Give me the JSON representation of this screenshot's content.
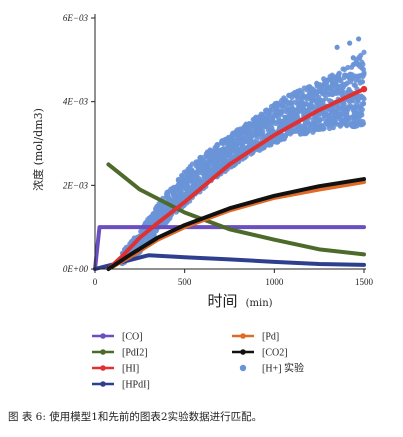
{
  "chart_data": {
    "type": "line",
    "ylabel": "浓度 (mol/dm3)",
    "xlabel": "时间",
    "xlabel_unit": "(min)",
    "x_ticks": [
      0,
      500,
      1000,
      1500
    ],
    "y_ticks": [
      "0E+00",
      "2E−03",
      "4E−03",
      "6E−03"
    ],
    "y_tick_values": [
      0,
      0.002,
      0.004,
      0.006
    ],
    "xlim": [
      0,
      1500
    ],
    "ylim": [
      0,
      0.006
    ],
    "grid": false,
    "legend_position": "bottom",
    "series": [
      {
        "name": "[CO]",
        "color": "#6a4fc0",
        "kind": "line",
        "x": [
          0,
          25,
          1500
        ],
        "y": [
          0,
          0.001,
          0.001
        ]
      },
      {
        "name": "[PdI2]",
        "color": "#4e6a2a",
        "kind": "line",
        "x": [
          75,
          250,
          500,
          750,
          1000,
          1250,
          1500
        ],
        "y": [
          0.0025,
          0.0019,
          0.00135,
          0.00095,
          0.0007,
          0.00047,
          0.00035
        ]
      },
      {
        "name": "[HI]",
        "color": "#e03030",
        "kind": "line",
        "x": [
          75,
          150,
          250,
          350,
          500,
          750,
          1000,
          1250,
          1500
        ],
        "y": [
          0,
          0.0003,
          0.00075,
          0.0011,
          0.0016,
          0.0025,
          0.0032,
          0.0038,
          0.0043
        ]
      },
      {
        "name": "[HPdI]",
        "color": "#2f3f90",
        "kind": "line",
        "x": [
          0,
          300,
          500,
          750,
          1000,
          1250,
          1500
        ],
        "y": [
          0,
          0.00033,
          0.00028,
          0.00023,
          0.00017,
          0.00012,
          0.0001
        ]
      },
      {
        "name": "[Pd]",
        "color": "#e06a28",
        "kind": "line",
        "x": [
          75,
          200,
          350,
          500,
          750,
          1000,
          1250,
          1500
        ],
        "y": [
          0,
          0.0003,
          0.0007,
          0.001,
          0.0014,
          0.0017,
          0.0019,
          0.00208
        ]
      },
      {
        "name": "[CO2]",
        "color": "#111111",
        "kind": "line",
        "x": [
          75,
          200,
          350,
          500,
          750,
          1000,
          1250,
          1500
        ],
        "y": [
          0,
          0.00035,
          0.00075,
          0.00105,
          0.00145,
          0.00175,
          0.00198,
          0.00215
        ]
      },
      {
        "name": "[H+] 实验",
        "color": "#6a94d8",
        "kind": "scatter-band",
        "x": [
          150,
          250,
          350,
          450,
          550,
          650,
          750,
          850,
          950,
          1050,
          1150,
          1250,
          1350,
          1450,
          1500
        ],
        "y_low": [
          0.0001,
          0.0004,
          0.0009,
          0.00135,
          0.0017,
          0.0021,
          0.0024,
          0.0027,
          0.0029,
          0.0031,
          0.0032,
          0.0033,
          0.0034,
          0.0034,
          0.00345
        ],
        "y_high": [
          0.0004,
          0.0009,
          0.00155,
          0.0021,
          0.00255,
          0.0029,
          0.0032,
          0.0035,
          0.0038,
          0.0041,
          0.0043,
          0.0045,
          0.0047,
          0.005,
          0.0052
        ]
      }
    ],
    "legend": [
      {
        "label": "[CO]",
        "color": "#6a4fc0",
        "marker": "line"
      },
      {
        "label": "[Pd]",
        "color": "#e06a28",
        "marker": "line"
      },
      {
        "label": "[PdI2]",
        "color": "#4e6a2a",
        "marker": "line"
      },
      {
        "label": "[CO2]",
        "color": "#111111",
        "marker": "line"
      },
      {
        "label": "[HI]",
        "color": "#e03030",
        "marker": "line"
      },
      {
        "label": "[H+] 实验",
        "color": "#6a94d8",
        "marker": "dot"
      },
      {
        "label": "[HPdI]",
        "color": "#2f3f90",
        "marker": "line"
      }
    ]
  },
  "caption": "图    表 6: 使用模型1和先前的图表2实验数据进行匹配。"
}
